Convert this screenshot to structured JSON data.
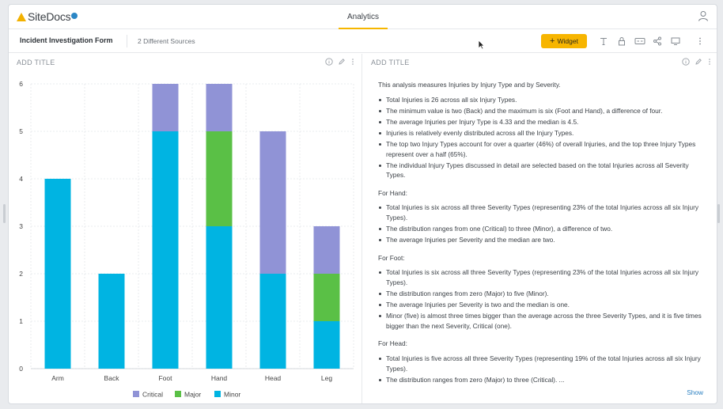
{
  "app": {
    "logo_text": "SiteDocs",
    "active_tab": "Analytics",
    "colors": {
      "accent": "#f7b500",
      "link": "#2a7fc1"
    }
  },
  "toolbar": {
    "form_title": "Incident Investigation Form",
    "sources": "2 Different Sources",
    "widget_label": "Widget",
    "icons": [
      "text-icon",
      "lock-icon",
      "caption-icon",
      "share-icon",
      "monitor-icon",
      "more-vertical-icon"
    ]
  },
  "left_panel": {
    "title": "ADD TITLE"
  },
  "right_panel": {
    "title": "ADD TITLE",
    "intro": "This analysis measures Injuries by Injury Type and by Severity.",
    "summary_bullets": [
      "Total Injuries is 26 across all six Injury Types.",
      "The minimum value is two (Back) and the maximum is six (Foot and Hand), a difference of four.",
      "The average Injuries per Injury Type is 4.33 and the median is 4.5.",
      "Injuries is relatively evenly distributed across all the Injury Types.",
      "The top two Injury Types account for over a quarter (46%) of overall Injuries, and the top three Injury Types represent over a half (65%).",
      "The individual Injury Types discussed in detail are selected based on the total Injuries across all Severity Types."
    ],
    "sections": [
      {
        "heading": "For Hand:",
        "bullets": [
          "Total Injuries is six across all three Severity Types (representing 23% of the total Injuries across all six Injury Types).",
          "The distribution ranges from one (Critical) to three (Minor), a difference of two.",
          "The average Injuries per Severity and the median are two."
        ]
      },
      {
        "heading": "For Foot:",
        "bullets": [
          "Total Injuries is six across all three Severity Types (representing 23% of the total Injuries across all six Injury Types).",
          "The distribution ranges from zero (Major) to five (Minor).",
          "The average Injuries per Severity is two and the median is one.",
          "Minor (five) is almost three times bigger than the average across the three Severity Types, and it is five times bigger than the next Severity, Critical (one)."
        ]
      },
      {
        "heading": "For Head:",
        "bullets": [
          "Total Injuries is five across all three Severity Types (representing 19% of the total Injuries across all six Injury Types).",
          "The distribution ranges from zero (Major) to three (Critical). ..."
        ]
      }
    ],
    "show_label": "Show"
  },
  "chart_data": {
    "type": "bar",
    "stacked": true,
    "categories": [
      "Arm",
      "Back",
      "Foot",
      "Hand",
      "Head",
      "Leg"
    ],
    "series": [
      {
        "name": "Minor",
        "values": [
          4,
          2,
          5,
          3,
          2,
          1
        ],
        "color": "#00b4e2"
      },
      {
        "name": "Major",
        "values": [
          0,
          0,
          0,
          2,
          0,
          1
        ],
        "color": "#5ac046"
      },
      {
        "name": "Critical",
        "values": [
          0,
          0,
          1,
          1,
          3,
          1
        ],
        "color": "#9093d6"
      }
    ],
    "legend_order": [
      "Critical",
      "Major",
      "Minor"
    ],
    "legend_position": "bottom",
    "ylim": [
      0,
      6
    ],
    "yticks": [
      "0",
      "1",
      "2",
      "3",
      "4",
      "5",
      "6"
    ],
    "grid": true
  }
}
